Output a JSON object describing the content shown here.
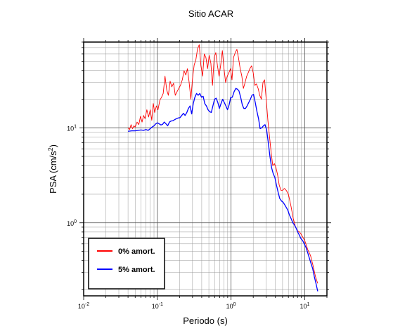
{
  "chart_data": {
    "type": "line",
    "title": "Sitio ACAR",
    "xlabel": "Periodo (s)",
    "ylabel_base": "PSA (cm/s",
    "ylabel_sup": "2",
    "ylabel_end": ")",
    "x_scale": "log",
    "y_scale": "log",
    "xlim": [
      0.01,
      20
    ],
    "ylim": [
      0.17,
      80
    ],
    "grid": true,
    "legend_position": "bottom-left",
    "x_ticks": [
      {
        "value": 0.01,
        "base": "10",
        "exp": "-2"
      },
      {
        "value": 0.1,
        "base": "10",
        "exp": "-1"
      },
      {
        "value": 1,
        "base": "10",
        "exp": "0"
      },
      {
        "value": 10,
        "base": "10",
        "exp": "1"
      }
    ],
    "y_ticks": [
      {
        "value": 1,
        "base": "10",
        "exp": "0"
      },
      {
        "value": 10,
        "base": "10",
        "exp": "1"
      }
    ],
    "series": [
      {
        "name": "0% amort.",
        "color": "#ff0000",
        "points": [
          [
            0.04,
            10.0
          ],
          [
            0.042,
            9.6
          ],
          [
            0.044,
            10.8
          ],
          [
            0.046,
            9.8
          ],
          [
            0.048,
            10.5
          ],
          [
            0.05,
            10.2
          ],
          [
            0.053,
            11.5
          ],
          [
            0.056,
            10.8
          ],
          [
            0.059,
            13.2
          ],
          [
            0.062,
            11.5
          ],
          [
            0.065,
            13.5
          ],
          [
            0.068,
            12.5
          ],
          [
            0.072,
            15.5
          ],
          [
            0.076,
            13.0
          ],
          [
            0.08,
            15.5
          ],
          [
            0.084,
            12.0
          ],
          [
            0.088,
            18.0
          ],
          [
            0.092,
            14.5
          ],
          [
            0.097,
            17.0
          ],
          [
            0.102,
            15.5
          ],
          [
            0.108,
            19.5
          ],
          [
            0.114,
            21.0
          ],
          [
            0.12,
            23.0
          ],
          [
            0.127,
            35.0
          ],
          [
            0.134,
            25.0
          ],
          [
            0.141,
            22.0
          ],
          [
            0.149,
            31.0
          ],
          [
            0.157,
            27.0
          ],
          [
            0.166,
            29.5
          ],
          [
            0.175,
            22.0
          ],
          [
            0.185,
            24.0
          ],
          [
            0.195,
            26.0
          ],
          [
            0.206,
            28.0
          ],
          [
            0.218,
            32.0
          ],
          [
            0.23,
            40.0
          ],
          [
            0.243,
            36.0
          ],
          [
            0.256,
            42.0
          ],
          [
            0.27,
            30.0
          ],
          [
            0.285,
            20.0
          ],
          [
            0.3,
            33.0
          ],
          [
            0.316,
            46.0
          ],
          [
            0.333,
            52.0
          ],
          [
            0.351,
            68.0
          ],
          [
            0.37,
            75.0
          ],
          [
            0.39,
            45.0
          ],
          [
            0.411,
            35.0
          ],
          [
            0.433,
            60.0
          ],
          [
            0.456,
            55.0
          ],
          [
            0.48,
            42.0
          ],
          [
            0.505,
            58.0
          ],
          [
            0.532,
            48.0
          ],
          [
            0.56,
            28.0
          ],
          [
            0.59,
            55.0
          ],
          [
            0.621,
            62.0
          ],
          [
            0.654,
            45.0
          ],
          [
            0.688,
            35.0
          ],
          [
            0.724,
            46.0
          ],
          [
            0.762,
            65.0
          ],
          [
            0.802,
            42.0
          ],
          [
            0.844,
            30.0
          ],
          [
            0.888,
            35.0
          ],
          [
            0.934,
            38.0
          ],
          [
            0.983,
            42.0
          ],
          [
            1.03,
            32.0
          ],
          [
            1.08,
            55.0
          ],
          [
            1.14,
            62.0
          ],
          [
            1.2,
            67.0
          ],
          [
            1.26,
            55.0
          ],
          [
            1.33,
            42.0
          ],
          [
            1.4,
            35.0
          ],
          [
            1.47,
            26.0
          ],
          [
            1.55,
            30.0
          ],
          [
            1.63,
            35.0
          ],
          [
            1.71,
            38.0
          ],
          [
            1.8,
            42.0
          ],
          [
            1.9,
            45.0
          ],
          [
            2.0,
            38.0
          ],
          [
            2.1,
            28.0
          ],
          [
            2.21,
            29.0
          ],
          [
            2.33,
            26.0
          ],
          [
            2.45,
            22.0
          ],
          [
            2.58,
            20.0
          ],
          [
            2.71,
            30.0
          ],
          [
            2.85,
            32.0
          ],
          [
            3.0,
            20.0
          ],
          [
            3.16,
            12.0
          ],
          [
            3.33,
            8.0
          ],
          [
            3.5,
            5.5
          ],
          [
            3.68,
            4.0
          ],
          [
            3.87,
            4.2
          ],
          [
            4.07,
            3.8
          ],
          [
            4.28,
            3.2
          ],
          [
            4.5,
            2.5
          ],
          [
            4.75,
            2.2
          ],
          [
            5.0,
            2.2
          ],
          [
            5.3,
            2.3
          ],
          [
            5.6,
            2.2
          ],
          [
            6.0,
            2.0
          ],
          [
            6.5,
            1.5
          ],
          [
            7.0,
            1.1
          ],
          [
            7.5,
            0.9
          ],
          [
            8.0,
            0.82
          ],
          [
            8.5,
            0.8
          ],
          [
            9.0,
            0.75
          ],
          [
            10.0,
            0.65
          ],
          [
            11.0,
            0.52
          ],
          [
            12.0,
            0.45
          ],
          [
            13.0,
            0.35
          ],
          [
            14.0,
            0.27
          ],
          [
            15.0,
            0.23
          ]
        ]
      },
      {
        "name": "5% amort.",
        "color": "#0000ff",
        "points": [
          [
            0.04,
            9.2
          ],
          [
            0.045,
            9.3
          ],
          [
            0.05,
            9.3
          ],
          [
            0.055,
            9.4
          ],
          [
            0.06,
            9.5
          ],
          [
            0.065,
            9.4
          ],
          [
            0.07,
            9.6
          ],
          [
            0.075,
            9.4
          ],
          [
            0.08,
            9.8
          ],
          [
            0.085,
            10.2
          ],
          [
            0.09,
            10.5
          ],
          [
            0.095,
            11.0
          ],
          [
            0.1,
            11.3
          ],
          [
            0.106,
            11.0
          ],
          [
            0.112,
            10.7
          ],
          [
            0.118,
            10.9
          ],
          [
            0.124,
            11.5
          ],
          [
            0.131,
            11.0
          ],
          [
            0.138,
            10.5
          ],
          [
            0.146,
            11.5
          ],
          [
            0.154,
            11.8
          ],
          [
            0.163,
            11.9
          ],
          [
            0.172,
            12.2
          ],
          [
            0.182,
            12.5
          ],
          [
            0.192,
            12.7
          ],
          [
            0.203,
            12.8
          ],
          [
            0.214,
            13.5
          ],
          [
            0.226,
            14.2
          ],
          [
            0.238,
            13.5
          ],
          [
            0.251,
            14.5
          ],
          [
            0.264,
            16.0
          ],
          [
            0.278,
            17.0
          ],
          [
            0.292,
            14.0
          ],
          [
            0.307,
            18.0
          ],
          [
            0.323,
            21.0
          ],
          [
            0.34,
            23.0
          ],
          [
            0.358,
            22.0
          ],
          [
            0.377,
            23.0
          ],
          [
            0.397,
            21.0
          ],
          [
            0.418,
            21.5
          ],
          [
            0.44,
            18.0
          ],
          [
            0.463,
            17.0
          ],
          [
            0.487,
            15.5
          ],
          [
            0.512,
            14.8
          ],
          [
            0.539,
            14.5
          ],
          [
            0.567,
            17.0
          ],
          [
            0.597,
            20.0
          ],
          [
            0.628,
            20.5
          ],
          [
            0.661,
            18.5
          ],
          [
            0.695,
            16.0
          ],
          [
            0.731,
            18.0
          ],
          [
            0.769,
            20.0
          ],
          [
            0.809,
            18.5
          ],
          [
            0.851,
            17.0
          ],
          [
            0.895,
            15.5
          ],
          [
            0.942,
            17.5
          ],
          [
            0.991,
            21.0
          ],
          [
            1.04,
            21.0
          ],
          [
            1.1,
            24.0
          ],
          [
            1.16,
            26.0
          ],
          [
            1.22,
            25.5
          ],
          [
            1.28,
            24.5
          ],
          [
            1.35,
            21.0
          ],
          [
            1.42,
            17.5
          ],
          [
            1.49,
            16.0
          ],
          [
            1.57,
            16.0
          ],
          [
            1.65,
            17.0
          ],
          [
            1.74,
            18.5
          ],
          [
            1.83,
            20.0
          ],
          [
            1.92,
            22.0
          ],
          [
            2.02,
            22.5
          ],
          [
            2.13,
            18.5
          ],
          [
            2.24,
            15.0
          ],
          [
            2.36,
            12.5
          ],
          [
            2.48,
            9.8
          ],
          [
            2.61,
            10.0
          ],
          [
            2.75,
            10.5
          ],
          [
            2.89,
            10.8
          ],
          [
            3.04,
            9.5
          ],
          [
            3.2,
            7.0
          ],
          [
            3.37,
            5.0
          ],
          [
            3.55,
            3.8
          ],
          [
            3.73,
            3.3
          ],
          [
            3.93,
            3.0
          ],
          [
            4.13,
            2.5
          ],
          [
            4.35,
            2.1
          ],
          [
            4.58,
            1.8
          ],
          [
            4.82,
            1.7
          ],
          [
            5.07,
            1.65
          ],
          [
            5.34,
            1.55
          ],
          [
            5.62,
            1.45
          ],
          [
            5.91,
            1.35
          ],
          [
            6.22,
            1.2
          ],
          [
            6.55,
            1.1
          ],
          [
            6.89,
            1.0
          ],
          [
            7.25,
            0.95
          ],
          [
            7.63,
            0.88
          ],
          [
            8.03,
            0.8
          ],
          [
            8.45,
            0.74
          ],
          [
            8.89,
            0.68
          ],
          [
            9.36,
            0.65
          ],
          [
            9.85,
            0.6
          ],
          [
            10.4,
            0.55
          ],
          [
            11.0,
            0.48
          ],
          [
            11.6,
            0.42
          ],
          [
            12.2,
            0.37
          ],
          [
            12.8,
            0.33
          ],
          [
            13.5,
            0.27
          ],
          [
            14.2,
            0.23
          ],
          [
            15.0,
            0.19
          ]
        ]
      }
    ]
  }
}
